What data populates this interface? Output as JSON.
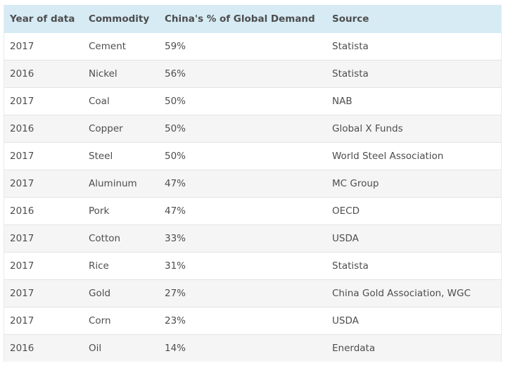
{
  "chart_data": {
    "type": "table",
    "columns": [
      "Year of data",
      "Commodity",
      "China's % of Global Demand",
      "Source"
    ],
    "rows": [
      [
        "2017",
        "Cement",
        "59%",
        "Statista"
      ],
      [
        "2016",
        "Nickel",
        "56%",
        "Statista"
      ],
      [
        "2017",
        "Coal",
        "50%",
        "NAB"
      ],
      [
        "2016",
        "Copper",
        "50%",
        "Global X Funds"
      ],
      [
        "2017",
        "Steel",
        "50%",
        "World Steel Association"
      ],
      [
        "2017",
        "Aluminum",
        "47%",
        "MC Group"
      ],
      [
        "2016",
        "Pork",
        "47%",
        "OECD"
      ],
      [
        "2017",
        "Cotton",
        "33%",
        "USDA"
      ],
      [
        "2017",
        "Rice",
        "31%",
        "Statista"
      ],
      [
        "2017",
        "Gold",
        "27%",
        "China Gold Association, WGC"
      ],
      [
        "2017",
        "Corn",
        "23%",
        "USDA"
      ],
      [
        "2016",
        "Oil",
        "14%",
        "Enerdata"
      ]
    ],
    "colors": {
      "header_background": "#d6ebf4",
      "stripe_background": "#f5f5f5",
      "text": "#4d4d4d"
    }
  }
}
